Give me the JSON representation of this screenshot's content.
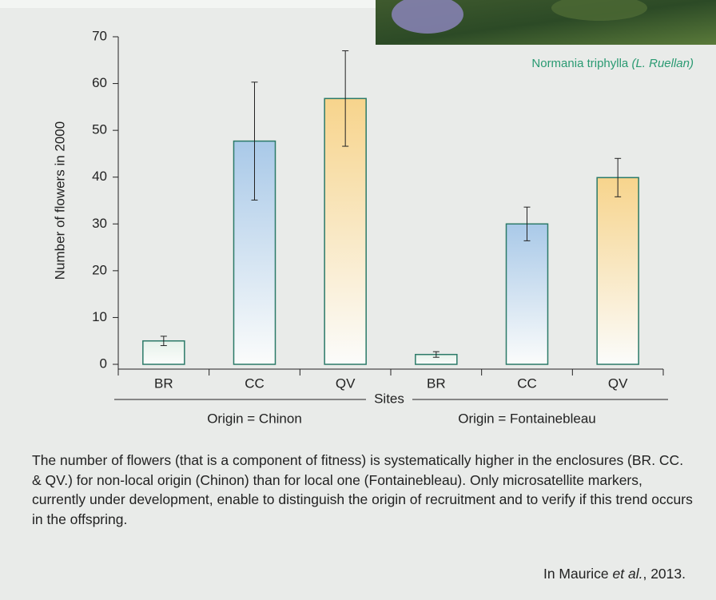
{
  "chart_data": {
    "type": "bar",
    "ylabel": "Number of flowers in 2000",
    "xlabel": "Sites",
    "categories": [
      "BR",
      "CC",
      "QV",
      "BR",
      "CC",
      "QV"
    ],
    "groups": [
      "Origin = Chinon",
      "Origin = Fontainebleau"
    ],
    "values": [
      5,
      47.7,
      56.8,
      2.1,
      30,
      39.9
    ],
    "errors": [
      1,
      12.6,
      10.2,
      0.6,
      3.6,
      4.1
    ],
    "colors": [
      "#e6f2ea",
      "#a9c9e8",
      "#f7d48c",
      "#e6f2ea",
      "#a9c9e8",
      "#f7d48c"
    ],
    "edge_color": "#2b7a68",
    "ylim": [
      0,
      70
    ],
    "yticks": [
      0,
      10,
      20,
      30,
      40,
      50,
      60,
      70
    ]
  },
  "photo_caption": {
    "name": "Normania triphylla",
    "credit": "(L. Ruellan)"
  },
  "caption": "The number of flowers (that is a component of fitness) is systematically higher in the enclosures (BR. CC. & QV.) for non-local origin (Chinon) than for local one (Fontainebleau). Only microsatellite markers, currently under development, enable to distinguish the origin of recruitment and to verify if this trend occurs in the offspring.",
  "citation": {
    "before": "In Maurice ",
    "italic": "et al.",
    "after": ", 2013."
  }
}
